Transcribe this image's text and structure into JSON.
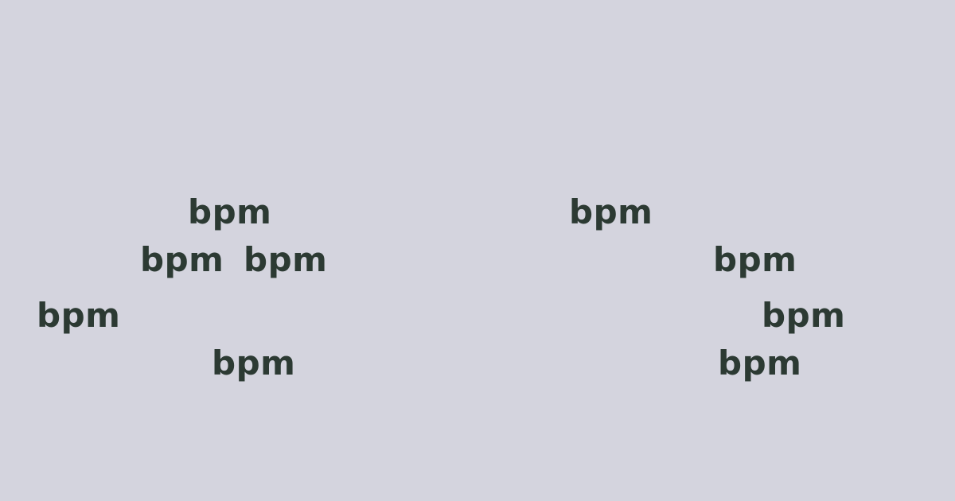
{
  "background_color": "#d4d4de",
  "text_color": "#2c3a33",
  "labels": {
    "left_group": [
      "bpm",
      "bpm",
      "bpm",
      "bpm",
      "bpm"
    ],
    "right_group": [
      "bpm",
      "bpm",
      "bpm",
      "bpm"
    ]
  }
}
